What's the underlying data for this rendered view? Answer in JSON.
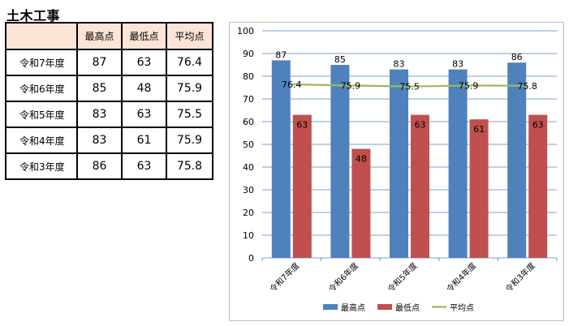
{
  "title": "土木工事",
  "table": {
    "headers": [
      "",
      "最高点",
      "最低点",
      "平均点"
    ],
    "rows": [
      {
        "label": "令和7年度",
        "max": "87",
        "min": "63",
        "avg": "76.4"
      },
      {
        "label": "令和6年度",
        "max": "85",
        "min": "48",
        "avg": "75.9"
      },
      {
        "label": "令和5年度",
        "max": "83",
        "min": "63",
        "avg": "75.5"
      },
      {
        "label": "令和4年度",
        "max": "83",
        "min": "61",
        "avg": "75.9"
      },
      {
        "label": "令和3年度",
        "max": "86",
        "min": "63",
        "avg": "75.8"
      }
    ]
  },
  "colors": {
    "header_fill": "#fce4d6",
    "max_bar": "#4f81bd",
    "min_bar": "#c0504d",
    "avg_line": "#9bbb59",
    "grid": "#4f81bd"
  },
  "chart_data": {
    "type": "bar",
    "categories": [
      "令和7年度",
      "令和6年度",
      "令和5年度",
      "令和4年度",
      "令和3年度"
    ],
    "series": [
      {
        "name": "最高点",
        "type": "bar",
        "values": [
          87,
          85,
          83,
          83,
          86
        ]
      },
      {
        "name": "最低点",
        "type": "bar",
        "values": [
          63,
          48,
          63,
          61,
          63
        ]
      },
      {
        "name": "平均点",
        "type": "line",
        "values": [
          76.4,
          75.9,
          75.5,
          75.9,
          75.8
        ]
      }
    ],
    "ylim": [
      0,
      100
    ],
    "yticks": [
      0,
      10,
      20,
      30,
      40,
      50,
      60,
      70,
      80,
      90,
      100
    ],
    "grid": true,
    "legend": "bottom"
  }
}
